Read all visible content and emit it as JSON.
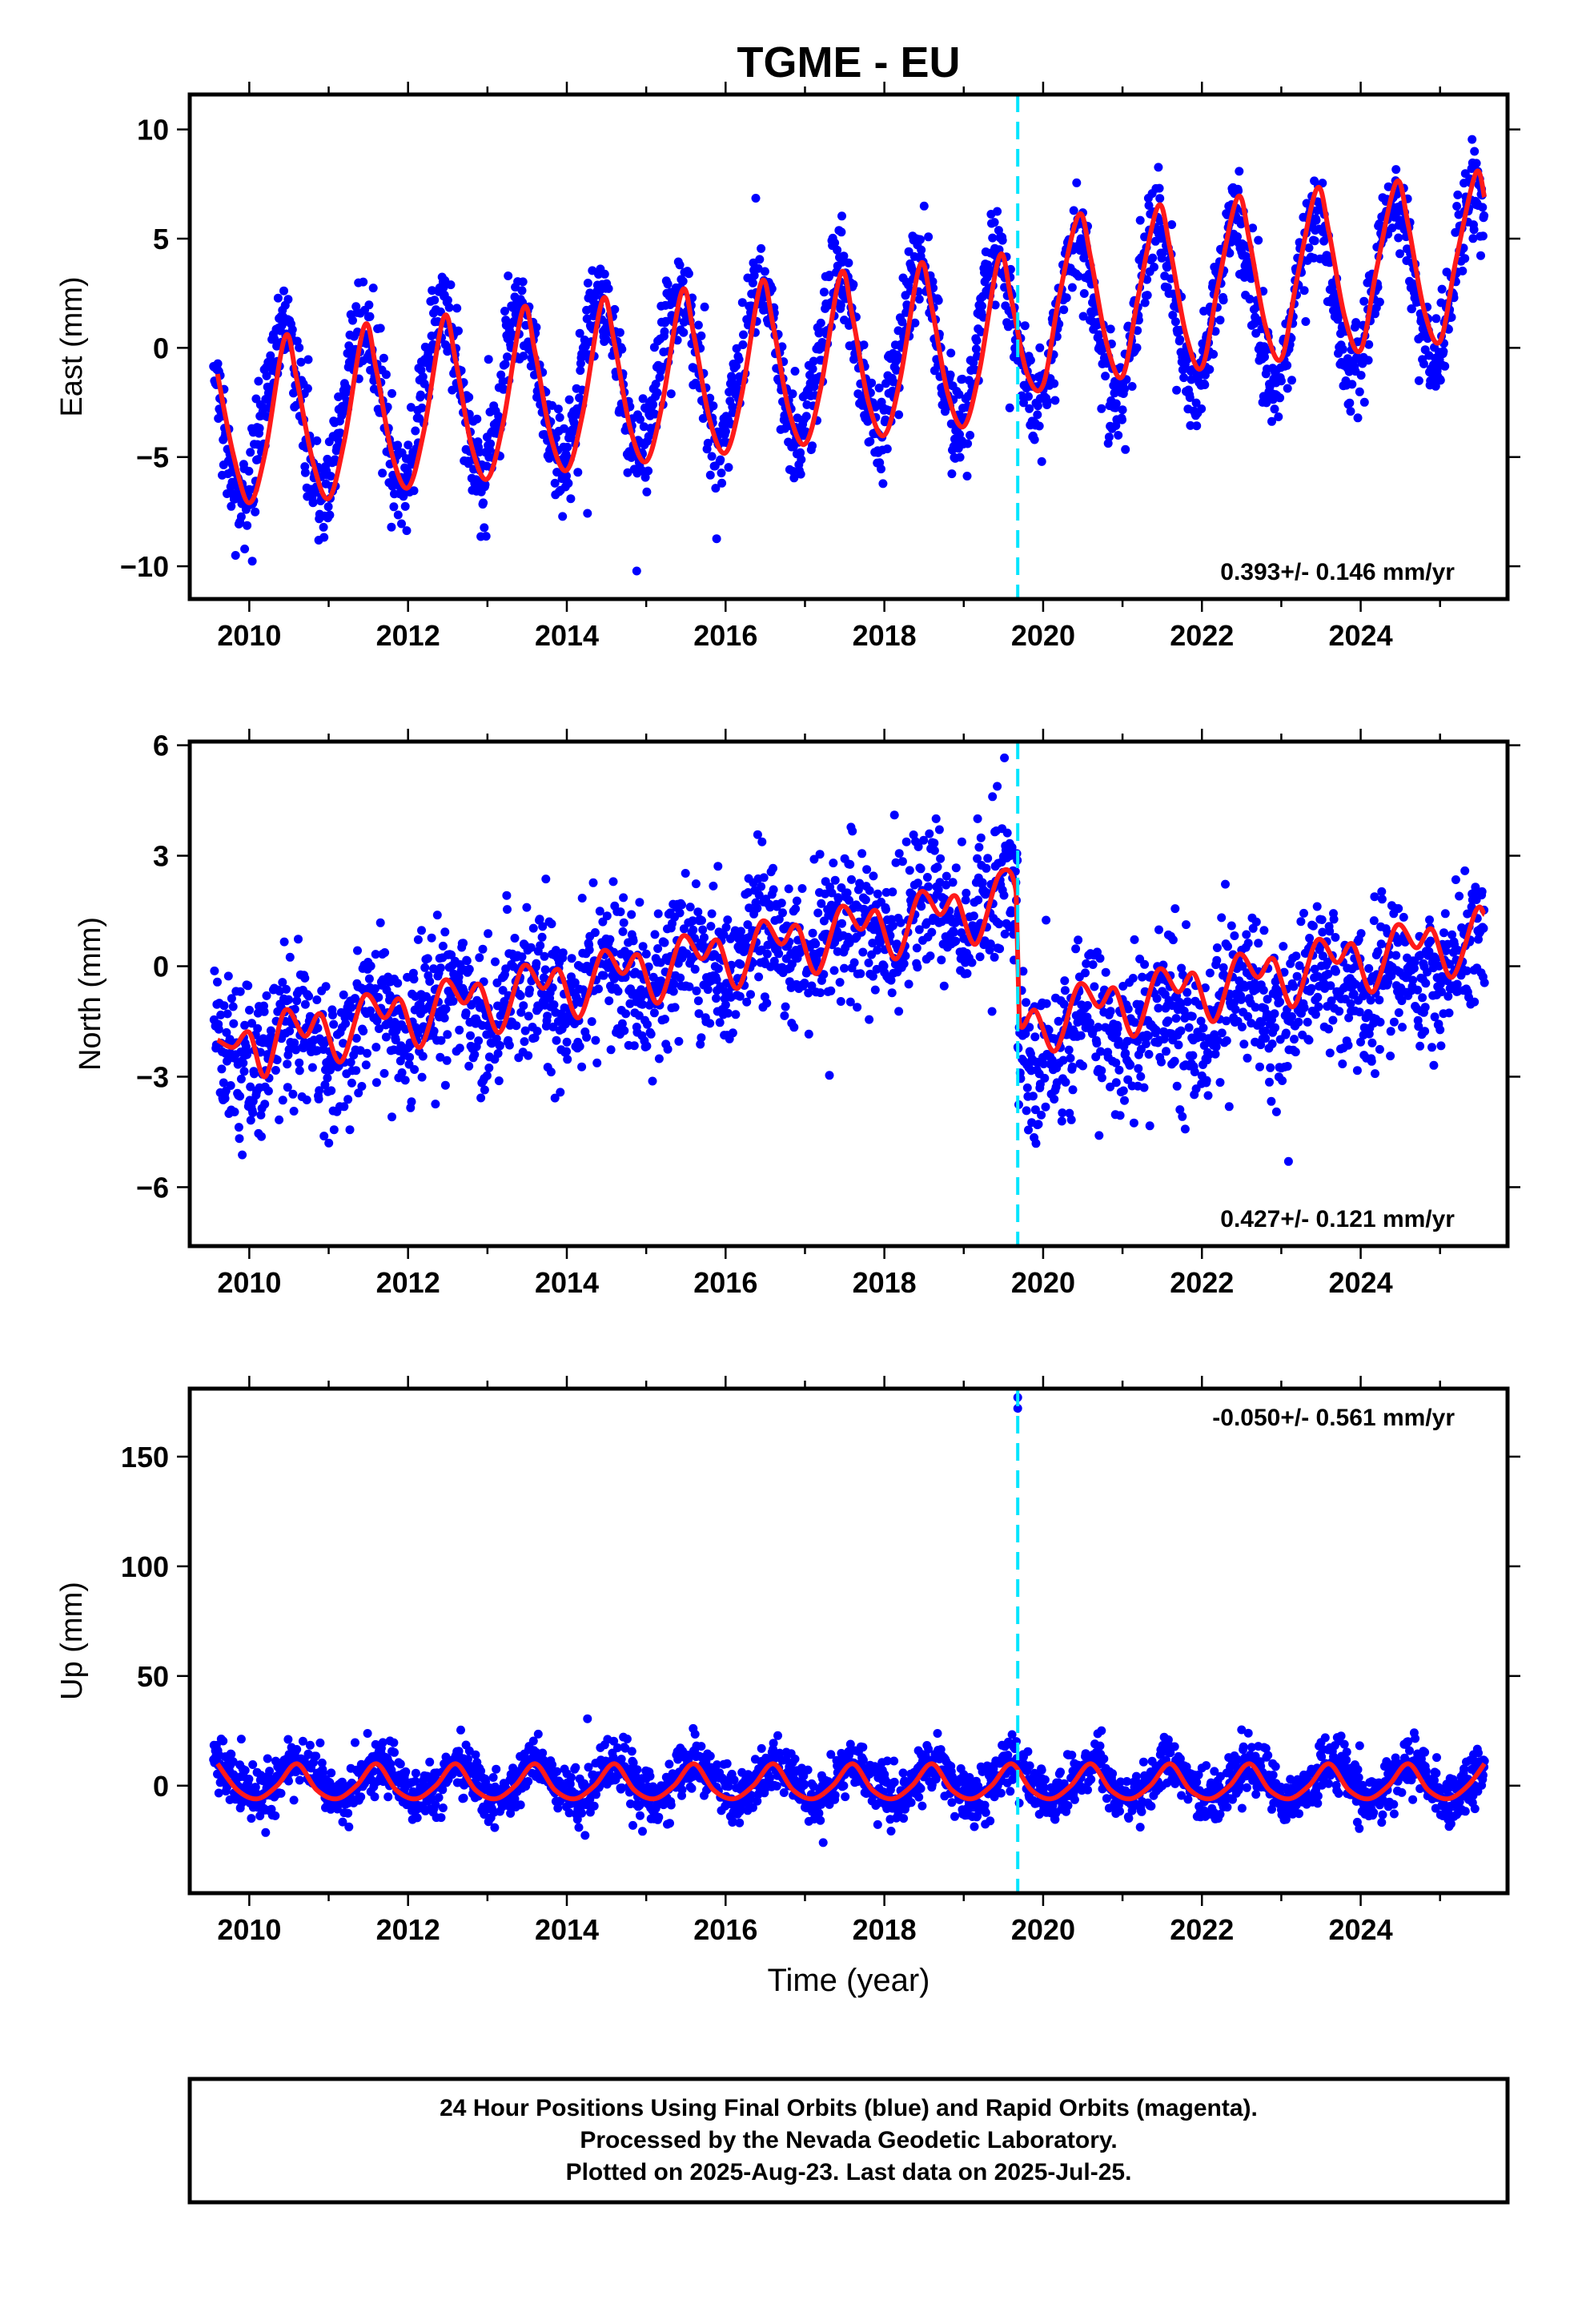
{
  "figure": {
    "title": "TGME - EU",
    "x_axis_label": "Time (year)",
    "footer": [
      "24 Hour Positions Using Final Orbits (blue) and Rapid Orbits (magenta).",
      "Processed by the Nevada Geodetic Laboratory.",
      "Plotted on 2025-Aug-23. Last data on 2025-Jul-25."
    ]
  },
  "colors": {
    "observations": "#0000ff",
    "model": "#ff1a1a",
    "equipment_change": "#00e5ff"
  },
  "chart_data": [
    {
      "type": "scatter",
      "component": "east",
      "ylabel": "East (mm)",
      "rate_text": "0.393+/- 0.146 mm/yr",
      "rate_position": "bottom-right",
      "xlim": [
        2009.25,
        2025.85
      ],
      "ylim": [
        -11.5,
        11.6
      ],
      "x_ticks": [
        2010,
        2012,
        2014,
        2016,
        2018,
        2020,
        2022,
        2024
      ],
      "y_ticks": [
        -10,
        -5,
        0,
        5,
        10
      ],
      "y_tick_labels": [
        "−10",
        "−5",
        "0",
        "5",
        "10"
      ],
      "equipment_change_x": 2019.68,
      "data_range_x": [
        2009.55,
        2025.56
      ],
      "series": [
        {
          "role": "observations",
          "marker": "dot",
          "model": {
            "intercept_at_2010": -3.2,
            "rate": 0.393,
            "annual_amplitude": 3.7,
            "peak_phase_year_fraction": 0.42,
            "step_at_break": 0.3,
            "noise_sd": 1.1
          }
        },
        {
          "role": "model",
          "line": true,
          "points": [
            [
              2009.6,
              -1.2
            ],
            [
              2009.8,
              -4.9
            ],
            [
              2010.0,
              -7.1
            ],
            [
              2010.2,
              -4.8
            ],
            [
              2010.45,
              0.5
            ],
            [
              2010.6,
              -1.5
            ],
            [
              2010.8,
              -5.2
            ],
            [
              2011.0,
              -6.9
            ],
            [
              2011.2,
              -4.2
            ],
            [
              2011.45,
              1.0
            ],
            [
              2011.6,
              -1.0
            ],
            [
              2011.8,
              -4.9
            ],
            [
              2012.0,
              -6.4
            ],
            [
              2012.2,
              -3.8
            ],
            [
              2012.45,
              1.4
            ],
            [
              2012.6,
              -0.6
            ],
            [
              2012.8,
              -4.5
            ],
            [
              2013.0,
              -6.0
            ],
            [
              2013.2,
              -3.4
            ],
            [
              2013.45,
              1.8
            ],
            [
              2013.6,
              -0.2
            ],
            [
              2013.8,
              -4.1
            ],
            [
              2014.0,
              -5.6
            ],
            [
              2014.2,
              -3.0
            ],
            [
              2014.45,
              2.2
            ],
            [
              2014.6,
              0.2
            ],
            [
              2014.8,
              -3.7
            ],
            [
              2015.0,
              -5.2
            ],
            [
              2015.2,
              -2.6
            ],
            [
              2015.45,
              2.6
            ],
            [
              2015.6,
              0.6
            ],
            [
              2015.8,
              -3.3
            ],
            [
              2016.0,
              -4.8
            ],
            [
              2016.2,
              -2.2
            ],
            [
              2016.45,
              3.0
            ],
            [
              2016.6,
              1.0
            ],
            [
              2016.8,
              -2.9
            ],
            [
              2017.0,
              -4.4
            ],
            [
              2017.2,
              -1.8
            ],
            [
              2017.45,
              3.4
            ],
            [
              2017.6,
              1.4
            ],
            [
              2017.8,
              -2.5
            ],
            [
              2018.0,
              -4.0
            ],
            [
              2018.2,
              -1.4
            ],
            [
              2018.45,
              3.8
            ],
            [
              2018.6,
              1.8
            ],
            [
              2018.8,
              -2.1
            ],
            [
              2019.0,
              -3.6
            ],
            [
              2019.2,
              -1.0
            ],
            [
              2019.45,
              4.2
            ],
            [
              2019.6,
              2.2
            ],
            [
              2019.8,
              -1.2
            ],
            [
              2020.0,
              -1.7
            ],
            [
              2020.2,
              2.3
            ],
            [
              2020.45,
              6.1
            ],
            [
              2020.6,
              4.1
            ],
            [
              2020.8,
              0.2
            ],
            [
              2021.0,
              -1.3
            ],
            [
              2021.2,
              2.4
            ],
            [
              2021.45,
              6.5
            ],
            [
              2021.6,
              4.5
            ],
            [
              2021.8,
              0.6
            ],
            [
              2022.0,
              -0.9
            ],
            [
              2022.2,
              2.8
            ],
            [
              2022.45,
              6.9
            ],
            [
              2022.6,
              4.9
            ],
            [
              2022.8,
              1.0
            ],
            [
              2023.0,
              -0.5
            ],
            [
              2023.2,
              3.2
            ],
            [
              2023.45,
              7.3
            ],
            [
              2023.6,
              5.3
            ],
            [
              2023.8,
              1.4
            ],
            [
              2024.0,
              -0.1
            ],
            [
              2024.2,
              3.6
            ],
            [
              2024.45,
              7.6
            ],
            [
              2024.6,
              5.6
            ],
            [
              2024.8,
              1.7
            ],
            [
              2025.0,
              0.3
            ],
            [
              2025.2,
              4.0
            ],
            [
              2025.45,
              8.0
            ],
            [
              2025.56,
              6.9
            ]
          ]
        }
      ]
    },
    {
      "type": "scatter",
      "component": "north",
      "ylabel": "North (mm)",
      "rate_text": "0.427+/- 0.121 mm/yr",
      "rate_position": "bottom-right",
      "xlim": [
        2009.25,
        2025.85
      ],
      "ylim": [
        -7.6,
        6.1
      ],
      "x_ticks": [
        2010,
        2012,
        2014,
        2016,
        2018,
        2020,
        2022,
        2024
      ],
      "y_ticks": [
        -6,
        -3,
        0,
        3,
        6
      ],
      "y_tick_labels": [
        "−6",
        "−3",
        "0",
        "3",
        "6"
      ],
      "equipment_change_x": 2019.68,
      "data_range_x": [
        2009.55,
        2025.56
      ],
      "series": [
        {
          "role": "observations",
          "marker": "dot",
          "model": {
            "intercept_at_2010": -2.3,
            "rate": 0.427,
            "annual_amplitude": 0.5,
            "peak_phase_year_fraction": 0.5,
            "step_at_break": -4.1,
            "noise_sd": 1.0
          }
        },
        {
          "role": "model",
          "line": true,
          "points": [
            [
              2009.6,
              -2.0
            ],
            [
              2009.8,
              -2.2
            ],
            [
              2010.0,
              -1.8
            ],
            [
              2010.2,
              -3.0
            ],
            [
              2010.45,
              -1.2
            ],
            [
              2010.7,
              -1.9
            ],
            [
              2010.9,
              -1.3
            ],
            [
              2011.15,
              -2.6
            ],
            [
              2011.45,
              -0.8
            ],
            [
              2011.7,
              -1.4
            ],
            [
              2011.9,
              -0.9
            ],
            [
              2012.15,
              -2.2
            ],
            [
              2012.45,
              -0.4
            ],
            [
              2012.7,
              -1.0
            ],
            [
              2012.9,
              -0.5
            ],
            [
              2013.15,
              -1.8
            ],
            [
              2013.45,
              0.0
            ],
            [
              2013.7,
              -0.6
            ],
            [
              2013.9,
              -0.1
            ],
            [
              2014.15,
              -1.4
            ],
            [
              2014.45,
              0.4
            ],
            [
              2014.7,
              -0.2
            ],
            [
              2014.9,
              0.3
            ],
            [
              2015.15,
              -1.0
            ],
            [
              2015.45,
              0.8
            ],
            [
              2015.7,
              0.2
            ],
            [
              2015.9,
              0.7
            ],
            [
              2016.15,
              -0.6
            ],
            [
              2016.45,
              1.2
            ],
            [
              2016.7,
              0.6
            ],
            [
              2016.9,
              1.1
            ],
            [
              2017.15,
              -0.2
            ],
            [
              2017.45,
              1.6
            ],
            [
              2017.7,
              1.0
            ],
            [
              2017.9,
              1.5
            ],
            [
              2018.15,
              0.2
            ],
            [
              2018.45,
              2.0
            ],
            [
              2018.7,
              1.4
            ],
            [
              2018.9,
              1.9
            ],
            [
              2019.15,
              0.6
            ],
            [
              2019.45,
              2.5
            ],
            [
              2019.66,
              2.0
            ],
            [
              2019.7,
              -1.5
            ],
            [
              2019.9,
              -1.2
            ],
            [
              2020.15,
              -2.3
            ],
            [
              2020.45,
              -0.5
            ],
            [
              2020.7,
              -1.1
            ],
            [
              2020.9,
              -0.6
            ],
            [
              2021.15,
              -1.9
            ],
            [
              2021.45,
              -0.1
            ],
            [
              2021.7,
              -0.7
            ],
            [
              2021.9,
              -0.2
            ],
            [
              2022.15,
              -1.5
            ],
            [
              2022.45,
              0.3
            ],
            [
              2022.7,
              -0.3
            ],
            [
              2022.9,
              0.2
            ],
            [
              2023.15,
              -1.1
            ],
            [
              2023.45,
              0.7
            ],
            [
              2023.7,
              0.1
            ],
            [
              2023.9,
              0.6
            ],
            [
              2024.15,
              -0.7
            ],
            [
              2024.45,
              1.1
            ],
            [
              2024.7,
              0.5
            ],
            [
              2024.9,
              1.0
            ],
            [
              2025.15,
              -0.3
            ],
            [
              2025.45,
              1.5
            ],
            [
              2025.56,
              1.4
            ]
          ]
        }
      ]
    },
    {
      "type": "scatter",
      "component": "up",
      "ylabel": "Up (mm)",
      "rate_text": "-0.050+/- 0.561 mm/yr",
      "rate_position": "top-right",
      "xlim": [
        2009.25,
        2025.85
      ],
      "ylim": [
        -49,
        181
      ],
      "x_ticks": [
        2010,
        2012,
        2014,
        2016,
        2018,
        2020,
        2022,
        2024
      ],
      "y_ticks": [
        0,
        50,
        100,
        150
      ],
      "y_tick_labels": [
        "0",
        "50",
        "100",
        "150"
      ],
      "equipment_change_x": 2019.68,
      "data_range_x": [
        2009.55,
        2025.56
      ],
      "outliers": [
        [
          2019.68,
          177
        ],
        [
          2019.68,
          172
        ]
      ],
      "series": [
        {
          "role": "observations",
          "marker": "dot",
          "model": {
            "intercept_at_2010": 2.0,
            "rate": -0.05,
            "annual_amplitude": 8.0,
            "peak_phase_year_fraction": 0.62,
            "step_at_break": 0,
            "noise_sd": 6.0
          }
        },
        {
          "role": "model",
          "line": true,
          "points": [
            [
              2009.6,
              10
            ],
            [
              2009.85,
              -2
            ],
            [
              2010.1,
              -6
            ],
            [
              2010.35,
              0
            ],
            [
              2010.6,
              10
            ],
            [
              2010.85,
              -2
            ],
            [
              2011.1,
              -6
            ],
            [
              2011.35,
              0
            ],
            [
              2011.6,
              10
            ],
            [
              2011.85,
              -2
            ],
            [
              2012.1,
              -6
            ],
            [
              2012.35,
              0
            ],
            [
              2012.6,
              10
            ],
            [
              2012.85,
              -2
            ],
            [
              2013.1,
              -6
            ],
            [
              2013.35,
              0
            ],
            [
              2013.6,
              10
            ],
            [
              2013.85,
              -2
            ],
            [
              2014.1,
              -6
            ],
            [
              2014.35,
              0
            ],
            [
              2014.6,
              10
            ],
            [
              2014.85,
              -2
            ],
            [
              2015.1,
              -6
            ],
            [
              2015.35,
              0
            ],
            [
              2015.6,
              10
            ],
            [
              2015.85,
              -2
            ],
            [
              2016.1,
              -6
            ],
            [
              2016.35,
              0
            ],
            [
              2016.6,
              10
            ],
            [
              2016.85,
              -2
            ],
            [
              2017.1,
              -6
            ],
            [
              2017.35,
              0
            ],
            [
              2017.6,
              10
            ],
            [
              2017.85,
              -2
            ],
            [
              2018.1,
              -6
            ],
            [
              2018.35,
              0
            ],
            [
              2018.6,
              10
            ],
            [
              2018.85,
              -2
            ],
            [
              2019.1,
              -6
            ],
            [
              2019.35,
              0
            ],
            [
              2019.6,
              10
            ],
            [
              2019.85,
              -2
            ],
            [
              2020.1,
              -6
            ],
            [
              2020.35,
              0
            ],
            [
              2020.6,
              10
            ],
            [
              2020.85,
              -2
            ],
            [
              2021.1,
              -6
            ],
            [
              2021.35,
              0
            ],
            [
              2021.6,
              10
            ],
            [
              2021.85,
              -2
            ],
            [
              2022.1,
              -6
            ],
            [
              2022.35,
              0
            ],
            [
              2022.6,
              10
            ],
            [
              2022.85,
              -2
            ],
            [
              2023.1,
              -6
            ],
            [
              2023.35,
              0
            ],
            [
              2023.6,
              10
            ],
            [
              2023.85,
              -2
            ],
            [
              2024.1,
              -6
            ],
            [
              2024.35,
              0
            ],
            [
              2024.6,
              10
            ],
            [
              2024.85,
              -2
            ],
            [
              2025.1,
              -6
            ],
            [
              2025.35,
              0
            ],
            [
              2025.56,
              10
            ]
          ]
        }
      ]
    }
  ]
}
